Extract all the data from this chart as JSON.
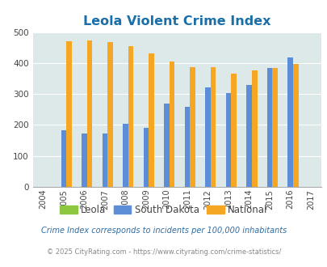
{
  "title": "Leola Violent Crime Index",
  "all_years": [
    2004,
    2005,
    2006,
    2007,
    2008,
    2009,
    2010,
    2011,
    2012,
    2013,
    2014,
    2015,
    2016,
    2017
  ],
  "data_years": [
    2005,
    2006,
    2007,
    2008,
    2009,
    2010,
    2011,
    2012,
    2013,
    2014,
    2015,
    2016
  ],
  "leola": [
    0,
    0,
    0,
    0,
    0,
    0,
    0,
    0,
    0,
    0,
    0,
    0
  ],
  "south_dakota": [
    183,
    172,
    172,
    205,
    190,
    268,
    258,
    322,
    302,
    330,
    383,
    418
  ],
  "national": [
    470,
    473,
    467,
    455,
    432,
    405,
    387,
    387,
    367,
    376,
    383,
    397
  ],
  "leola_color": "#8dc63f",
  "sd_color": "#5b8ed6",
  "national_color": "#f5a623",
  "bg_color": "#dde8e8",
  "ylim": [
    0,
    500
  ],
  "yticks": [
    0,
    100,
    200,
    300,
    400,
    500
  ],
  "legend_labels": [
    "Leola",
    "South Dakota",
    "National"
  ],
  "footnote1": "Crime Index corresponds to incidents per 100,000 inhabitants",
  "footnote2": "© 2025 CityRating.com - https://www.cityrating.com/crime-statistics/",
  "title_color": "#1a6fa8",
  "footnote1_color": "#2e6da4",
  "footnote2_color": "#888888"
}
